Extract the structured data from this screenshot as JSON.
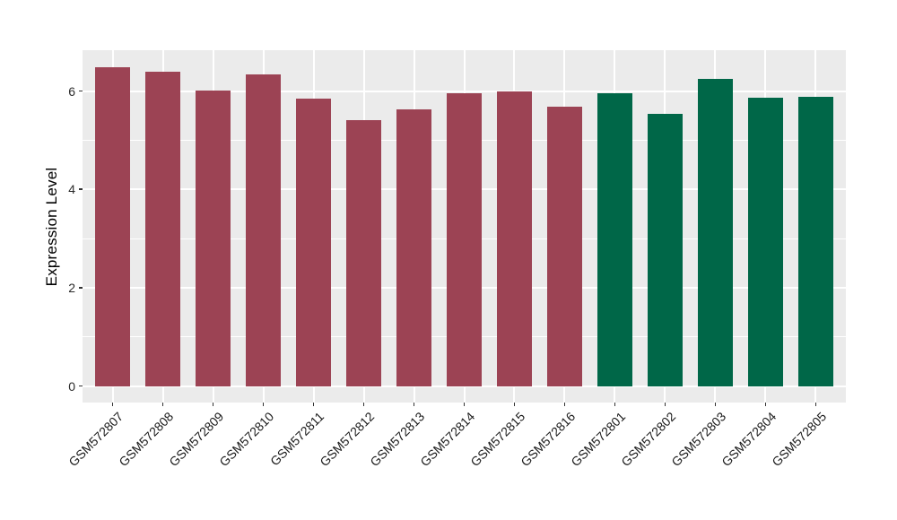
{
  "chart_data": {
    "type": "bar",
    "title": "",
    "xlabel": "",
    "ylabel": "Expression Level",
    "categories": [
      "GSM572807",
      "GSM572808",
      "GSM572809",
      "GSM572810",
      "GSM572811",
      "GSM572812",
      "GSM572813",
      "GSM572814",
      "GSM572815",
      "GSM572816",
      "GSM572801",
      "GSM572802",
      "GSM572803",
      "GSM572804",
      "GSM572805"
    ],
    "values": [
      6.49,
      6.39,
      6.01,
      6.34,
      5.85,
      5.41,
      5.63,
      5.95,
      5.99,
      5.68,
      5.95,
      5.53,
      6.25,
      5.86,
      5.88
    ],
    "bar_groups": [
      "group1",
      "group1",
      "group1",
      "group1",
      "group1",
      "group1",
      "group1",
      "group1",
      "group1",
      "group1",
      "group2",
      "group2",
      "group2",
      "group2",
      "group2"
    ],
    "group_colors": {
      "group1": "#9C4354",
      "group2": "#006748"
    },
    "yticks": [
      0,
      2,
      4,
      6
    ],
    "ytick_labels": [
      "0",
      "2",
      "4",
      "6"
    ],
    "minor_yticks": [
      1,
      3,
      5
    ],
    "ylim": [
      -0.33,
      6.83
    ],
    "bar_width_fraction": 0.7,
    "x_expand_units": 0.6,
    "x_label_angle": -45,
    "panel_bg": "#EBEBEB",
    "grid_color": "#FFFFFF",
    "tick_color": "#333333",
    "grid": "on",
    "legend": "none"
  }
}
